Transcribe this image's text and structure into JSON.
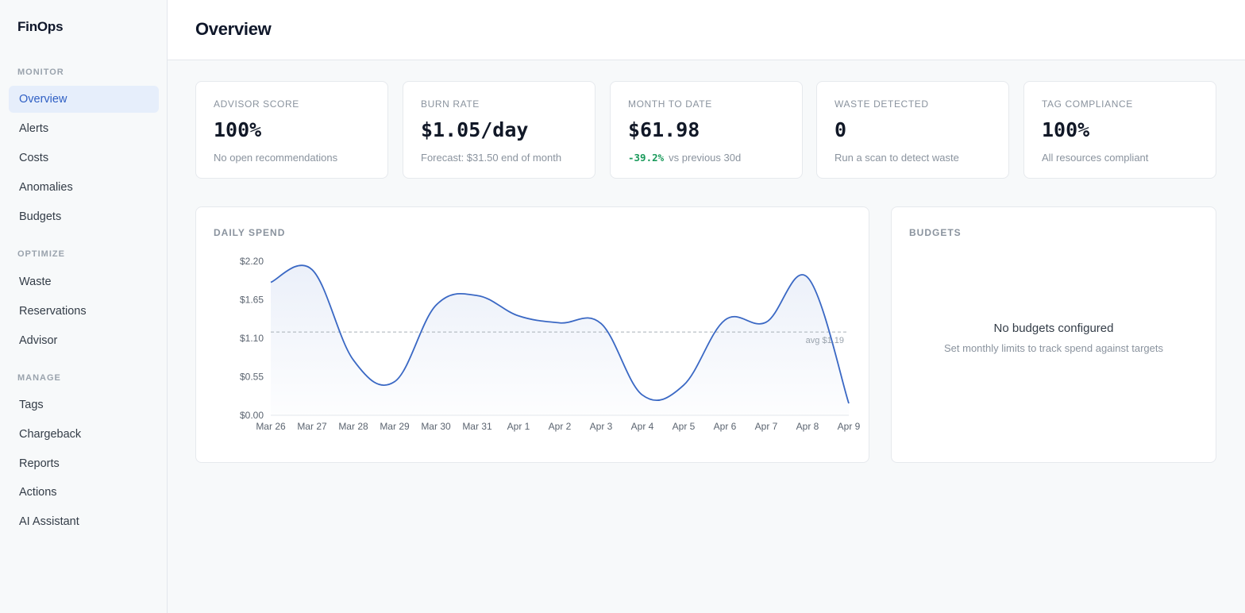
{
  "app": {
    "brand": "FinOps"
  },
  "sidebar": {
    "sections": [
      {
        "label": "MONITOR",
        "items": [
          {
            "label": "Overview",
            "active": true
          },
          {
            "label": "Alerts"
          },
          {
            "label": "Costs"
          },
          {
            "label": "Anomalies"
          },
          {
            "label": "Budgets"
          }
        ]
      },
      {
        "label": "OPTIMIZE",
        "items": [
          {
            "label": "Waste"
          },
          {
            "label": "Reservations"
          },
          {
            "label": "Advisor"
          }
        ]
      },
      {
        "label": "MANAGE",
        "items": [
          {
            "label": "Tags"
          },
          {
            "label": "Chargeback"
          },
          {
            "label": "Reports"
          },
          {
            "label": "Actions"
          },
          {
            "label": "AI Assistant"
          }
        ]
      }
    ]
  },
  "header": {
    "title": "Overview"
  },
  "kpis": [
    {
      "label": "ADVISOR SCORE",
      "value": "100%",
      "sub": "No open recommendations"
    },
    {
      "label": "BURN RATE",
      "value": "$1.05/day",
      "sub": "Forecast: $31.50 end of month"
    },
    {
      "label": "MONTH TO DATE",
      "value": "$61.98",
      "delta": "-39.2%",
      "sub": "vs previous 30d"
    },
    {
      "label": "WASTE DETECTED",
      "value": "0",
      "sub": "Run a scan to detect waste"
    },
    {
      "label": "TAG COMPLIANCE",
      "value": "100%",
      "sub": "All resources compliant"
    }
  ],
  "daily_spend": {
    "title": "DAILY SPEND"
  },
  "budgets": {
    "title": "BUDGETS",
    "empty_title": "No budgets configured",
    "empty_sub": "Set monthly limits to track spend against targets"
  },
  "colors": {
    "accent": "#2f5fc4",
    "line": "#3a68c4",
    "positive_delta": "#1a9a5b"
  },
  "chart_data": {
    "type": "line",
    "title": "DAILY SPEND",
    "x": [
      "Mar 26",
      "Mar 27",
      "Mar 28",
      "Mar 29",
      "Mar 30",
      "Mar 31",
      "Apr 1",
      "Apr 2",
      "Apr 3",
      "Apr 4",
      "Apr 5",
      "Apr 6",
      "Apr 7",
      "Apr 8",
      "Apr 9"
    ],
    "series": [
      {
        "values": [
          1.9,
          2.08,
          0.79,
          0.48,
          1.57,
          1.71,
          1.42,
          1.32,
          1.31,
          0.29,
          0.43,
          1.36,
          1.33,
          1.97,
          0.17
        ]
      }
    ],
    "y_ticks": [
      "$2.20",
      "$1.65",
      "$1.10",
      "$0.55",
      "$0.00"
    ],
    "ylim": [
      0,
      2.2
    ],
    "average": {
      "value": 1.19,
      "label": "avg $1.19"
    },
    "grid": false,
    "legend": "none"
  }
}
